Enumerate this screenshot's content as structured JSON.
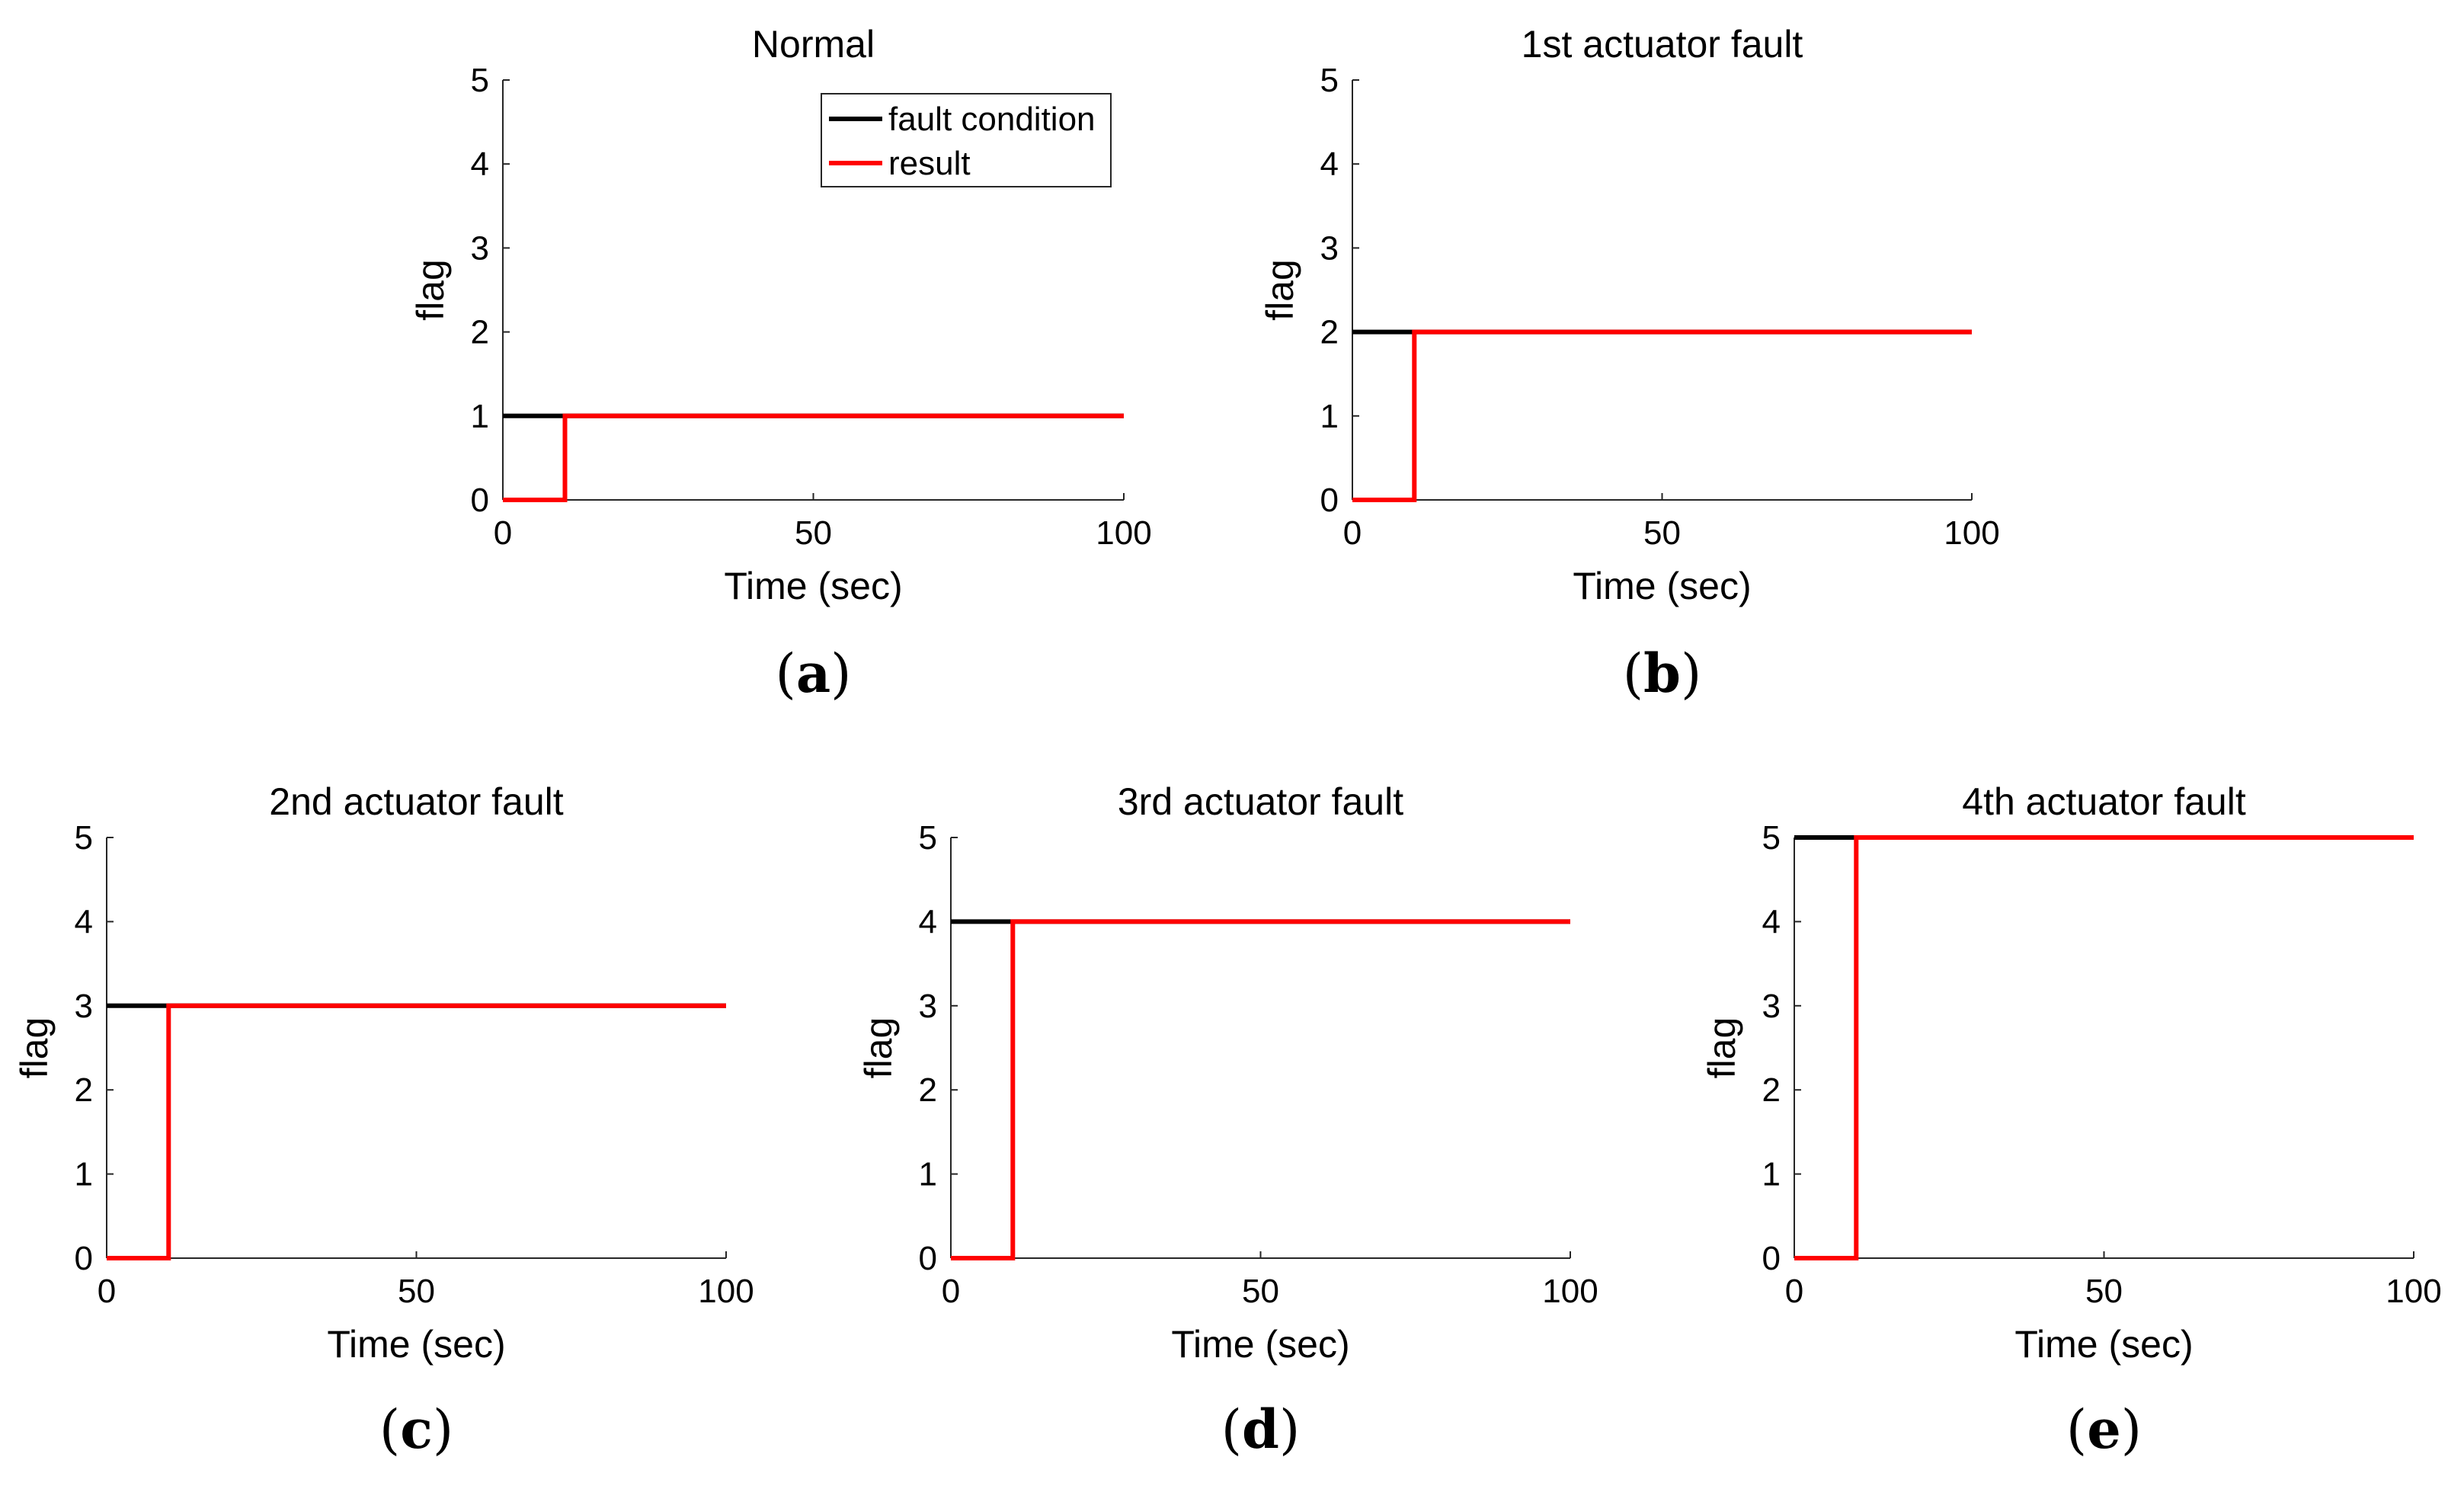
{
  "chart_data": [
    {
      "type": "line",
      "panel_label": "a",
      "title": "Normal",
      "xlabel": "Time (sec)",
      "ylabel": "flag",
      "xlim": [
        0,
        100
      ],
      "ylim": [
        0,
        5
      ],
      "xticks": [
        "0",
        "50",
        "100"
      ],
      "yticks": [
        "0",
        "1",
        "2",
        "3",
        "4",
        "5"
      ],
      "legend": {
        "position": "top-right",
        "entries": [
          "fault condition",
          "result"
        ]
      },
      "series": [
        {
          "name": "fault condition",
          "color": "#000000",
          "x": [
            0,
            100
          ],
          "y": [
            1,
            1
          ]
        },
        {
          "name": "result",
          "color": "#ff0000",
          "x": [
            0,
            10,
            10,
            100
          ],
          "y": [
            0,
            0,
            1,
            1
          ]
        }
      ]
    },
    {
      "type": "line",
      "panel_label": "b",
      "title": "1st actuator fault",
      "xlabel": "Time (sec)",
      "ylabel": "flag",
      "xlim": [
        0,
        100
      ],
      "ylim": [
        0,
        5
      ],
      "xticks": [
        "0",
        "50",
        "100"
      ],
      "yticks": [
        "0",
        "1",
        "2",
        "3",
        "4",
        "5"
      ],
      "series": [
        {
          "name": "fault condition",
          "color": "#000000",
          "x": [
            0,
            100
          ],
          "y": [
            2,
            2
          ]
        },
        {
          "name": "result",
          "color": "#ff0000",
          "x": [
            0,
            10,
            10,
            100
          ],
          "y": [
            0,
            0,
            2,
            2
          ]
        }
      ]
    },
    {
      "type": "line",
      "panel_label": "c",
      "title": "2nd actuator fault",
      "xlabel": "Time (sec)",
      "ylabel": "flag",
      "xlim": [
        0,
        100
      ],
      "ylim": [
        0,
        5
      ],
      "xticks": [
        "0",
        "50",
        "100"
      ],
      "yticks": [
        "0",
        "1",
        "2",
        "3",
        "4",
        "5"
      ],
      "series": [
        {
          "name": "fault condition",
          "color": "#000000",
          "x": [
            0,
            100
          ],
          "y": [
            3,
            3
          ]
        },
        {
          "name": "result",
          "color": "#ff0000",
          "x": [
            0,
            10,
            10,
            100
          ],
          "y": [
            0,
            0,
            3,
            3
          ]
        }
      ]
    },
    {
      "type": "line",
      "panel_label": "d",
      "title": "3rd actuator fault",
      "xlabel": "Time (sec)",
      "ylabel": "flag",
      "xlim": [
        0,
        100
      ],
      "ylim": [
        0,
        5
      ],
      "xticks": [
        "0",
        "50",
        "100"
      ],
      "yticks": [
        "0",
        "1",
        "2",
        "3",
        "4",
        "5"
      ],
      "series": [
        {
          "name": "fault condition",
          "color": "#000000",
          "x": [
            0,
            100
          ],
          "y": [
            4,
            4
          ]
        },
        {
          "name": "result",
          "color": "#ff0000",
          "x": [
            0,
            10,
            10,
            100
          ],
          "y": [
            0,
            0,
            4,
            4
          ]
        }
      ]
    },
    {
      "type": "line",
      "panel_label": "e",
      "title": "4th actuator fault",
      "xlabel": "Time (sec)",
      "ylabel": "flag",
      "xlim": [
        0,
        100
      ],
      "ylim": [
        0,
        5
      ],
      "xticks": [
        "0",
        "50",
        "100"
      ],
      "yticks": [
        "0",
        "1",
        "2",
        "3",
        "4",
        "5"
      ],
      "series": [
        {
          "name": "fault condition",
          "color": "#000000",
          "x": [
            0,
            100
          ],
          "y": [
            5,
            5
          ]
        },
        {
          "name": "result",
          "color": "#ff0000",
          "x": [
            0,
            10,
            10,
            100
          ],
          "y": [
            0,
            0,
            5,
            5
          ]
        }
      ]
    }
  ]
}
